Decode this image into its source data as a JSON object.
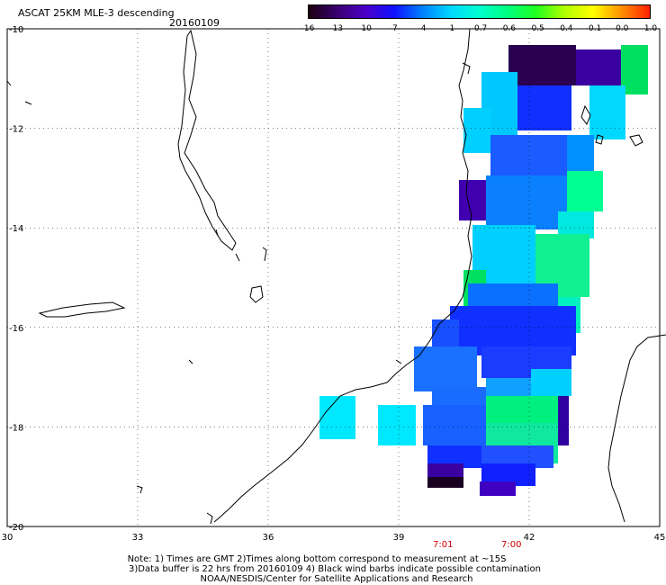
{
  "title": "ASCAT 25KM MLE-3 descending",
  "date": "20160109",
  "colorbar": {
    "labels": [
      "-16",
      "-13",
      "-10",
      "-7",
      "-4",
      "-1",
      "-0.7",
      "-0.6",
      "-0.5",
      "-0.4",
      "-0.1",
      "0.0",
      "1.0"
    ],
    "colors": [
      "#1a0010",
      "#3a0070",
      "#4b00c8",
      "#1010ff",
      "#0080ff",
      "#00d8ff",
      "#00ffd0",
      "#00ff80",
      "#20ff20",
      "#b0ff00",
      "#ffff00",
      "#ff9000",
      "#ff2000"
    ]
  },
  "map": {
    "lon_ticks": [
      "30",
      "33",
      "36",
      "39",
      "42",
      "45"
    ],
    "lat_ticks": [
      "-10",
      "-12",
      "-14",
      "-16",
      "-18",
      "-20"
    ],
    "lon_range": [
      30,
      45
    ],
    "lat_range": [
      -20,
      -10
    ],
    "grid": true
  },
  "pass_times": [
    "7:01",
    "7:00"
  ],
  "notes": {
    "line1": "Note: 1) Times are GMT 2)Times along bottom correspond to measurement at ~15S",
    "line2": "3)Data buffer is 22 hrs from 20160109 4) Black wind barbs indicate possible contamination",
    "line3": "NOAA/NESDIS/Center for Satellite Applications and Research"
  }
}
